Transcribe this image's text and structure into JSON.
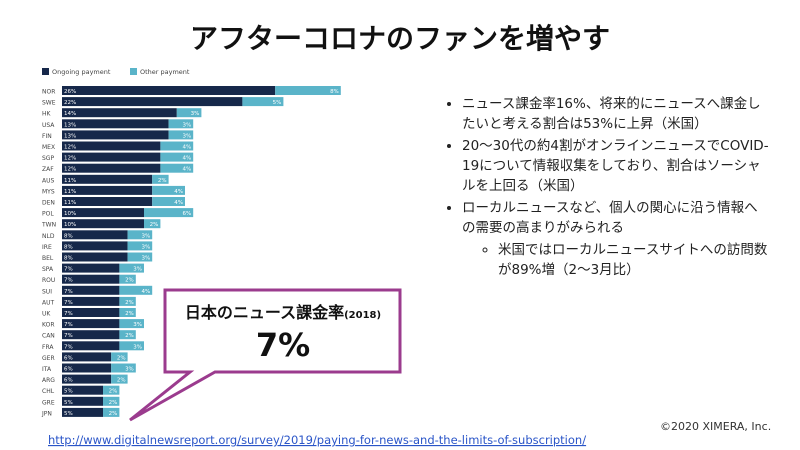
{
  "title": "アフターコロナのファンを増やす",
  "chart_data": {
    "type": "bar",
    "orientation": "horizontal",
    "stacked": true,
    "legend": "top-left",
    "categories": [
      "NOR",
      "SWE",
      "HK",
      "USA",
      "FIN",
      "MEX",
      "SGP",
      "ZAF",
      "AUS",
      "MYS",
      "DEN",
      "POL",
      "TWN",
      "NLD",
      "IRE",
      "BEL",
      "SPA",
      "ROU",
      "SUI",
      "AUT",
      "UK",
      "KOR",
      "CAN",
      "FRA",
      "GER",
      "ITA",
      "ARG",
      "CHL",
      "GRE",
      "JPN"
    ],
    "series": [
      {
        "name": "Ongoing payment",
        "color": "#16284a",
        "values": [
          26,
          22,
          14,
          13,
          13,
          12,
          12,
          12,
          11,
          11,
          11,
          10,
          10,
          8,
          8,
          8,
          7,
          7,
          7,
          7,
          7,
          7,
          7,
          7,
          6,
          6,
          6,
          5,
          5,
          5
        ],
        "value_labels": [
          "26%",
          "22%",
          "14%",
          "13%",
          "13%",
          "12%",
          "12%",
          "12%",
          "11%",
          "11%",
          "11%",
          "10%",
          "10%",
          "8%",
          "8%",
          "8%",
          "7%",
          "7%",
          "7%",
          "7%",
          "7%",
          "7%",
          "7%",
          "7%",
          "6%",
          "6%",
          "6%",
          "5%",
          "5%",
          "5%"
        ]
      },
      {
        "name": "Other payment",
        "color": "#5ab4c9",
        "values": [
          8,
          5,
          3,
          3,
          3,
          4,
          4,
          4,
          2,
          4,
          4,
          6,
          2,
          3,
          3,
          3,
          3,
          2,
          4,
          2,
          2,
          3,
          2,
          3,
          2,
          3,
          2,
          2,
          2,
          2
        ],
        "value_labels": [
          "8%",
          "5%",
          "3%",
          "3%",
          "3%",
          "4%",
          "4%",
          "4%",
          "2%",
          "4%",
          "4%",
          "6%",
          "2%",
          "3%",
          "3%",
          "3%",
          "3%",
          "2%",
          "4%",
          "2%",
          "2%",
          "3%",
          "2%",
          "3%",
          "2%",
          "3%",
          "2%",
          "2%",
          "2%",
          "2%"
        ]
      }
    ]
  },
  "callout": {
    "label": "日本のニュース課金率",
    "year": "(2018)",
    "value": "7%"
  },
  "bullets": [
    {
      "text": "ニュース課金率16%、将来的にニュースへ課金したいと考える割合は53%に上昇（米国）"
    },
    {
      "text": "20～30代の約4割がオンラインニュースでCOVID-19について情報収集をしており、割合はソーシャルを上回る（米国）"
    },
    {
      "text": "ローカルニュースなど、個人の関心に沿う情報への需要の高まりがみられる",
      "sub": [
        "米国ではローカルニュースサイトへの訪問数が89%増（2～3月比）"
      ]
    }
  ],
  "copyright": "©2020 XIMERA, Inc.",
  "source_url": "http://www.digitalnewsreport.org/survey/2019/paying-for-news-and-the-limits-of-subscription/"
}
